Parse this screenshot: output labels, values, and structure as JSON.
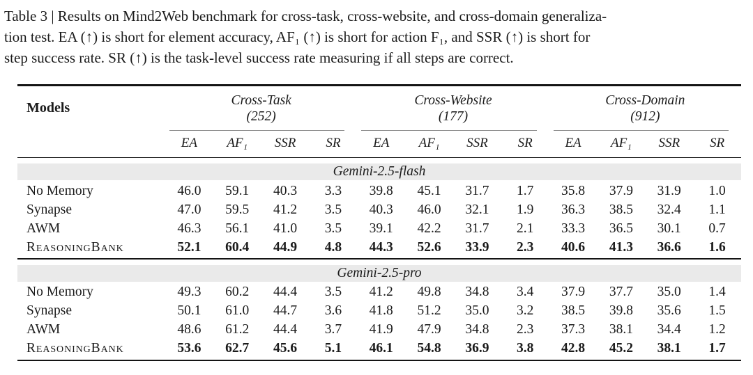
{
  "caption": {
    "lines": [
      "Table 3 | Results on Mind2Web benchmark for cross-task, cross-website, and cross-domain generaliza-",
      "tion test. EA (↑) is short for element accuracy, AF₁ (↑) is short for action F₁, and SSR (↑) is short for",
      "step success rate. SR (↑) is the task-level success rate measuring if all steps are correct."
    ]
  },
  "table": {
    "models_header": "Models",
    "groups": [
      {
        "title": "Cross-Task",
        "count": "(252)",
        "metrics": [
          "EA",
          "AF₁",
          "SSR",
          "SR"
        ]
      },
      {
        "title": "Cross-Website",
        "count": "(177)",
        "metrics": [
          "EA",
          "AF₁",
          "SSR",
          "SR"
        ]
      },
      {
        "title": "Cross-Domain",
        "count": "(912)",
        "metrics": [
          "EA",
          "AF₁",
          "SSR",
          "SR"
        ]
      }
    ],
    "sections": [
      {
        "title": "Gemini-2.5-flash",
        "rows": [
          {
            "model": "No Memory",
            "values": [
              "46.0",
              "59.1",
              "40.3",
              "3.3",
              "39.8",
              "45.1",
              "31.7",
              "1.7",
              "35.8",
              "37.9",
              "31.9",
              "1.0"
            ]
          },
          {
            "model": "Synapse",
            "values": [
              "47.0",
              "59.5",
              "41.2",
              "3.5",
              "40.3",
              "46.0",
              "32.1",
              "1.9",
              "36.3",
              "38.5",
              "32.4",
              "1.1"
            ]
          },
          {
            "model": "AWM",
            "values": [
              "46.3",
              "56.1",
              "41.0",
              "3.5",
              "39.1",
              "42.2",
              "31.7",
              "2.1",
              "33.3",
              "36.5",
              "30.1",
              "0.7"
            ]
          },
          {
            "model": "ReasoningBank",
            "values": [
              "52.1",
              "60.4",
              "44.9",
              "4.8",
              "44.3",
              "52.6",
              "33.9",
              "2.3",
              "40.6",
              "41.3",
              "36.6",
              "1.6"
            ]
          }
        ]
      },
      {
        "title": "Gemini-2.5-pro",
        "rows": [
          {
            "model": "No Memory",
            "values": [
              "49.3",
              "60.2",
              "44.4",
              "3.5",
              "41.2",
              "49.8",
              "34.8",
              "3.4",
              "37.9",
              "37.7",
              "35.0",
              "1.4"
            ]
          },
          {
            "model": "Synapse",
            "values": [
              "50.1",
              "61.0",
              "44.7",
              "3.6",
              "41.8",
              "51.2",
              "35.0",
              "3.2",
              "38.5",
              "39.8",
              "35.6",
              "1.5"
            ]
          },
          {
            "model": "AWM",
            "values": [
              "48.6",
              "61.2",
              "44.4",
              "3.7",
              "41.9",
              "47.9",
              "34.8",
              "2.3",
              "37.3",
              "38.1",
              "34.4",
              "1.2"
            ]
          },
          {
            "model": "ReasoningBank",
            "values": [
              "53.6",
              "62.7",
              "45.6",
              "5.1",
              "46.1",
              "54.8",
              "36.9",
              "3.8",
              "42.8",
              "45.2",
              "38.1",
              "1.7"
            ]
          }
        ]
      }
    ]
  },
  "colors": {
    "band_background": "#eaeaea",
    "heavy_rule": "#141414",
    "cmidrule": "#8a8a8a",
    "text": "#1b1b1b"
  }
}
